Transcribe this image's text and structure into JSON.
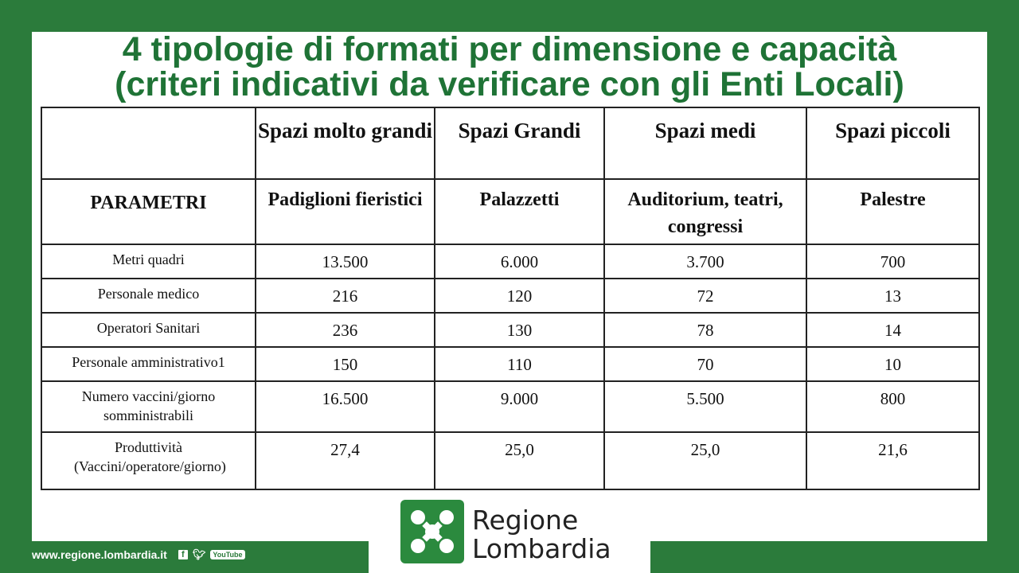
{
  "title": {
    "line1": "4 tipologie di formati per dimensione e capacità",
    "line2": "(criteri indicativi da verificare con gli Enti Locali)"
  },
  "table": {
    "header_row1": [
      "",
      "Spazi molto grandi",
      "Spazi Grandi",
      "Spazi medi",
      "Spazi piccoli"
    ],
    "header_row2": [
      "PARAMETRI",
      "Padiglioni fieristici",
      "Palazzetti",
      "Auditorium, teatri, congressi",
      "Palestre"
    ],
    "rows": [
      {
        "label": "Metri quadri",
        "values": [
          "13.500",
          "6.000",
          "3.700",
          "700"
        ]
      },
      {
        "label": "Personale medico",
        "values": [
          "216",
          "120",
          "72",
          "13"
        ]
      },
      {
        "label": "Operatori Sanitari",
        "values": [
          "236",
          "130",
          "78",
          "14"
        ]
      },
      {
        "label": "Personale amministrativo1",
        "values": [
          "150",
          "110",
          "70",
          "10"
        ]
      },
      {
        "label": "Numero vaccini/giorno somministrabili",
        "values": [
          "16.500",
          "9.000",
          "5.500",
          "800"
        ]
      },
      {
        "label": "Produttività (Vaccini/operatore/giorno)",
        "values": [
          "27,4",
          "25,0",
          "25,0",
          "21,6"
        ]
      }
    ]
  },
  "footer": {
    "website": "www.regione.lombardia.it",
    "social": [
      "facebook-icon",
      "twitter-icon",
      "youtube-icon"
    ],
    "youtube_label": "YouTube"
  },
  "logo": {
    "line1": "Regione",
    "line2": "Lombardia",
    "color": "#2b8a3e"
  }
}
